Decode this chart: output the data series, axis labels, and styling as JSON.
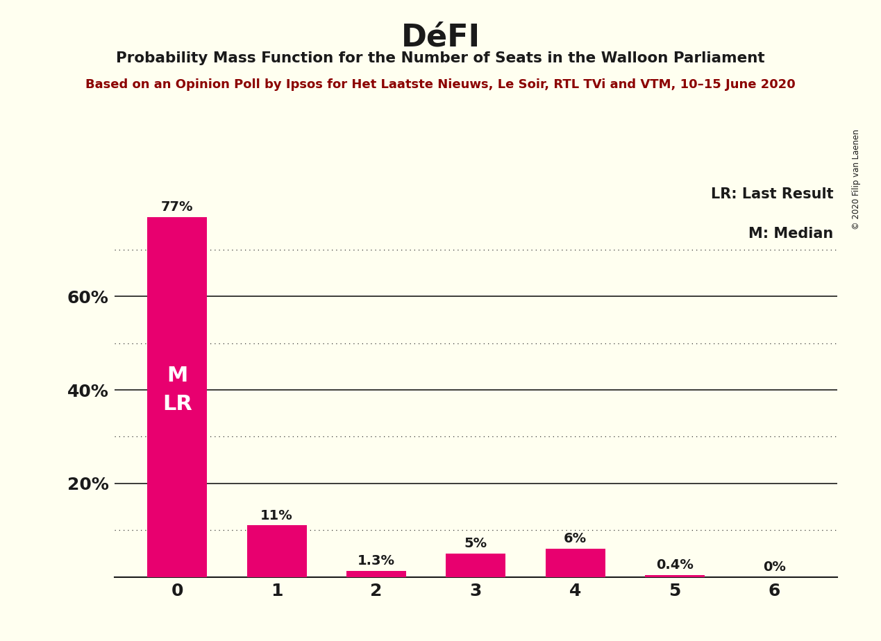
{
  "title": "DéFI",
  "subtitle": "Probability Mass Function for the Number of Seats in the Walloon Parliament",
  "source_line": "Based on an Opinion Poll by Ipsos for Het Laatste Nieuws, Le Soir, RTL TVi and VTM, 10–15 June 2020",
  "copyright": "© 2020 Filip van Laenen",
  "categories": [
    0,
    1,
    2,
    3,
    4,
    5,
    6
  ],
  "values": [
    0.77,
    0.11,
    0.013,
    0.05,
    0.06,
    0.004,
    0.0
  ],
  "bar_color": "#E8006F",
  "bar_labels": [
    "77%",
    "11%",
    "1.3%",
    "5%",
    "6%",
    "0.4%",
    "0%"
  ],
  "background_color": "#FFFFF0",
  "title_color": "#1a1a1a",
  "subtitle_color": "#1a1a1a",
  "source_color": "#8B0000",
  "legend_lr": "LR: Last Result",
  "legend_m": "M: Median",
  "bar_label_inside": "M\nLR",
  "bar_label_inside_seat": 0,
  "ylim": [
    0,
    0.85
  ],
  "yticks": [
    0.2,
    0.4,
    0.6
  ],
  "ytick_labels": [
    "20%",
    "40%",
    "60%"
  ],
  "solid_grid_values": [
    0.2,
    0.4,
    0.6
  ],
  "dotted_grid_values": [
    0.1,
    0.3,
    0.5,
    0.7
  ]
}
